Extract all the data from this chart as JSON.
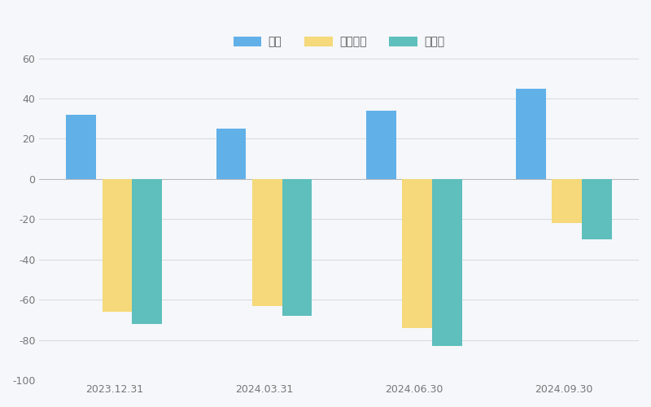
{
  "categories": [
    "2023.12.31",
    "2024.03.31",
    "2024.06.30",
    "2024.09.30"
  ],
  "series": [
    {
      "name": "매출",
      "values": [
        32,
        25,
        34,
        45
      ],
      "color": "#62B0E8"
    },
    {
      "name": "영업이익",
      "values": [
        -66,
        -63,
        -74,
        -22
      ],
      "color": "#F5D97A"
    },
    {
      "name": "순이익",
      "values": [
        -72,
        -68,
        -83,
        -30
      ],
      "color": "#5EBFBC"
    }
  ],
  "ylim": [
    -100,
    60
  ],
  "yticks": [
    -100,
    -80,
    -60,
    -40,
    -20,
    0,
    20,
    40,
    60
  ],
  "bg_color": "#F5F7FA",
  "grid_color": "#D8DCE3",
  "bar_width": 0.2,
  "legend_fontsize": 10,
  "tick_fontsize": 9,
  "figsize": [
    8.0,
    5.0
  ],
  "dpi": 100
}
